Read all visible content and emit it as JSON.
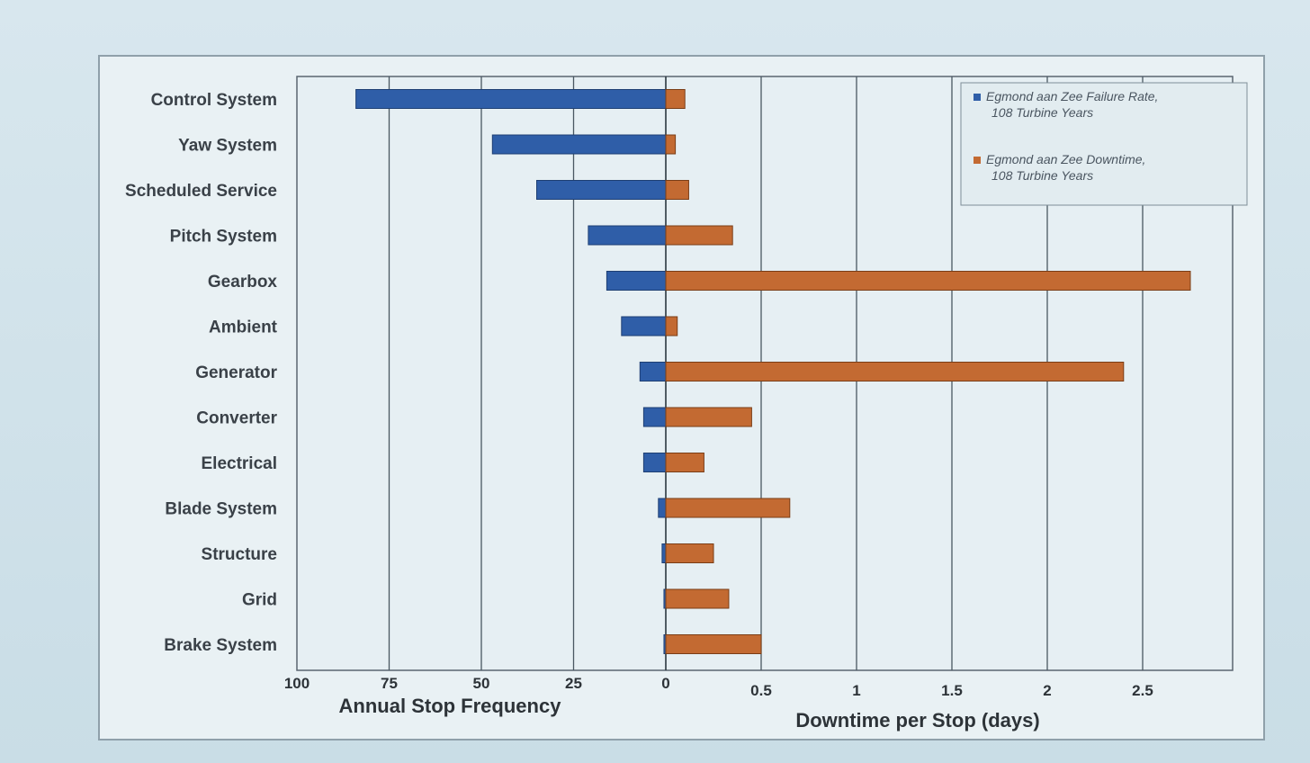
{
  "chart_data": {
    "type": "bar",
    "categories": [
      "Control System",
      "Yaw System",
      "Scheduled Service",
      "Pitch System",
      "Gearbox",
      "Ambient",
      "Generator",
      "Converter",
      "Electrical",
      "Blade System",
      "Structure",
      "Grid",
      "Brake System"
    ],
    "series": [
      {
        "name": "Egmond aan Zee Failure Rate, 108 Turbine Years",
        "axis": "Annual Stop Frequency",
        "color": "#2f5ea8",
        "values": [
          84,
          47,
          35,
          21,
          16,
          12,
          7,
          6,
          6,
          2,
          1,
          0.5,
          0.5
        ]
      },
      {
        "name": "Egmond aan Zee Downtime, 108 Turbine Years",
        "axis": "Downtime per Stop (days)",
        "color": "#c36a32",
        "values": [
          0.1,
          0.05,
          0.12,
          0.35,
          2.75,
          0.06,
          2.4,
          0.45,
          0.2,
          0.65,
          0.25,
          0.33,
          0.5
        ]
      }
    ],
    "left_axis": {
      "title": "Annual Stop Frequency",
      "range": [
        100,
        0
      ],
      "ticks": [
        "100",
        "75",
        "50",
        "25",
        "0"
      ]
    },
    "right_axis": {
      "title": "Downtime per Stop (days)",
      "range": [
        0,
        2.75
      ],
      "ticks": [
        "0.5",
        "1",
        "1.5",
        "2",
        "2.5"
      ]
    },
    "grid": true,
    "legend_placement": "top-right"
  }
}
